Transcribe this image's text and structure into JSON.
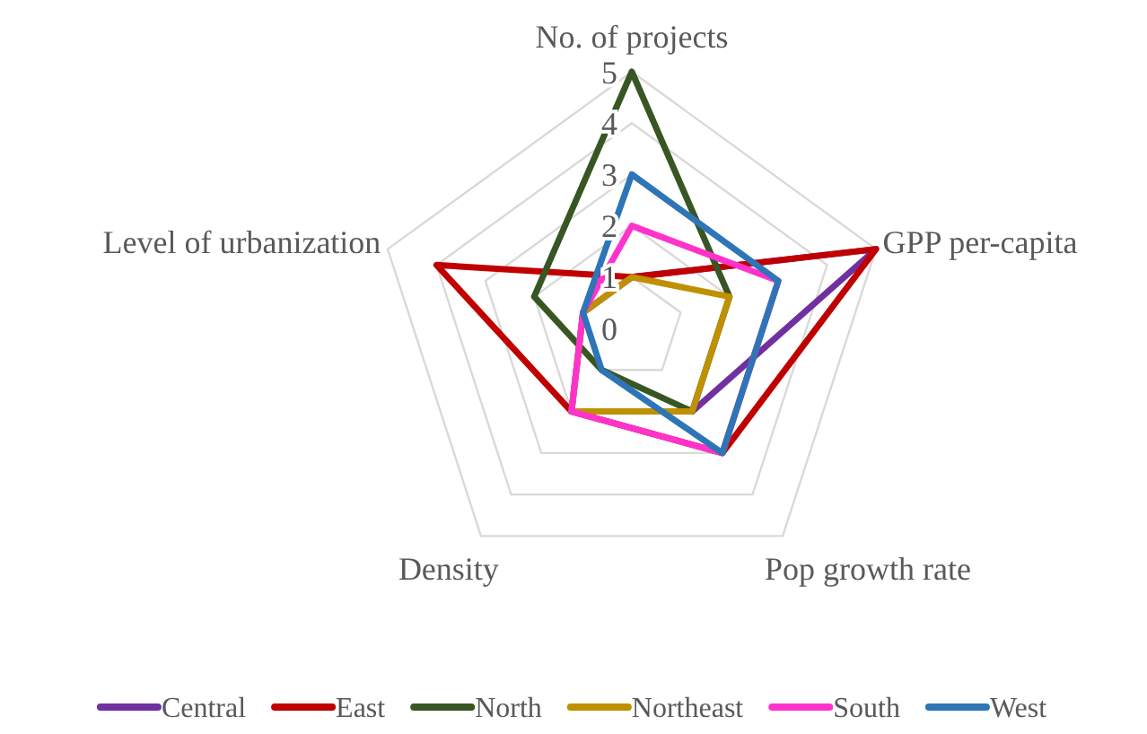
{
  "chart_data": {
    "type": "radar",
    "categories": [
      "No. of projects",
      "GPP per-capita",
      "Pop growth rate",
      "Density",
      "Level of urbanization"
    ],
    "ylim": [
      0,
      5
    ],
    "yticks": [
      0,
      1,
      2,
      3,
      4,
      5
    ],
    "grid": true,
    "legend": "bottom",
    "line_style": "solid",
    "marker": "none",
    "series": [
      {
        "name": "Central",
        "color": "#7030a0",
        "values": [
          1,
          5,
          2,
          2,
          1
        ]
      },
      {
        "name": "East",
        "color": "#c00000",
        "values": [
          1,
          5,
          3,
          2,
          4
        ]
      },
      {
        "name": "North",
        "color": "#375623",
        "values": [
          5,
          2,
          2,
          1,
          2
        ]
      },
      {
        "name": "Northeast",
        "color": "#bf9000",
        "values": [
          1,
          2,
          2,
          2,
          1
        ]
      },
      {
        "name": "South",
        "color": "#ff33cc",
        "values": [
          2,
          3,
          3,
          2,
          1
        ]
      },
      {
        "name": "West",
        "color": "#2e75b6",
        "values": [
          3,
          3,
          3,
          1,
          1
        ]
      }
    ]
  }
}
